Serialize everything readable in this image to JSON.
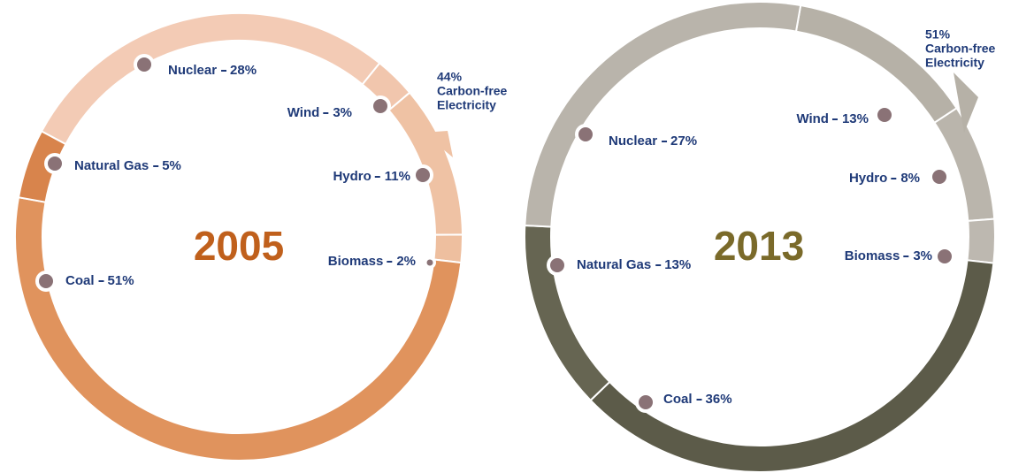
{
  "chart_data": [
    {
      "type": "donut",
      "title": "2005",
      "categories": [
        "Nuclear",
        "Wind",
        "Hydro",
        "Biomass",
        "Coal",
        "Natural Gas"
      ],
      "values": [
        28,
        3,
        11,
        2,
        51,
        5
      ],
      "value_labels": [
        "28%",
        "3%",
        "11%",
        "2%",
        "51%",
        "5%"
      ],
      "colors": [
        "#f3cbb5",
        "#f1c6ad",
        "#efc2a4",
        "#eebf9f",
        "#e0935d",
        "#d8844c"
      ],
      "title_color": "#c0601c",
      "annotation_value": 44,
      "annotation_label": "44%",
      "annotation_lines": [
        "Carbon-free",
        "Electricity"
      ]
    },
    {
      "type": "donut",
      "title": "2013",
      "categories": [
        "Wind",
        "Hydro",
        "Biomass",
        "Coal",
        "Natural Gas",
        "Nuclear"
      ],
      "values": [
        13,
        8,
        3,
        36,
        13,
        27
      ],
      "value_labels": [
        "13%",
        "8%",
        "3%",
        "36%",
        "13%",
        "27%"
      ],
      "colors": [
        "#b6b1a7",
        "#bab5ac",
        "#bdb8b0",
        "#5c5b49",
        "#666552",
        "#b9b4ab"
      ],
      "title_color": "#7a6a2a",
      "annotation_value": 51,
      "annotation_label": "51%",
      "annotation_lines": [
        "Carbon-free",
        "Electricity"
      ]
    }
  ]
}
